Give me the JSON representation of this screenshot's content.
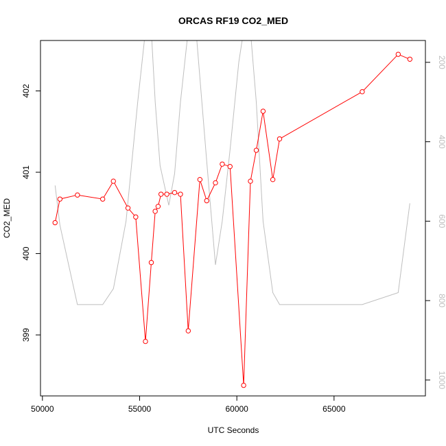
{
  "chart_data": {
    "type": "line",
    "title": "ORCAS RF19 CO2_MED",
    "xlabel": "UTC Seconds",
    "ylabel": "CO2_MED",
    "y2label": "",
    "xlim": [
      49900,
      69700
    ],
    "ylim": [
      398.25,
      402.62
    ],
    "y2lim": [
      1040,
      145
    ],
    "y2_reversed": true,
    "x_ticks": [
      50000,
      55000,
      60000,
      65000
    ],
    "y_ticks": [
      399,
      400,
      401,
      402
    ],
    "y2_ticks": [
      200,
      400,
      600,
      800,
      1000
    ],
    "grid": false,
    "series": [
      {
        "axis": "left",
        "color": "#ff0000",
        "marker": "open-circle",
        "x": [
          50650,
          50900,
          51800,
          53100,
          53650,
          54400,
          54800,
          55300,
          55600,
          55800,
          55950,
          56100,
          56400,
          56800,
          57100,
          57500,
          58100,
          58450,
          58900,
          59250,
          59650,
          60350,
          60700,
          61000,
          61350,
          61850,
          62200,
          66450,
          68300,
          68900
        ],
        "values": [
          400.38,
          400.67,
          400.72,
          400.67,
          400.89,
          400.56,
          400.45,
          398.92,
          399.89,
          400.52,
          400.58,
          400.73,
          400.73,
          400.75,
          400.73,
          399.05,
          400.91,
          400.65,
          400.87,
          401.1,
          401.07,
          398.38,
          400.89,
          401.27,
          401.75,
          400.91,
          401.41,
          401.99,
          402.45,
          402.39
        ]
      },
      {
        "axis": "right",
        "color": "#bebebe",
        "marker": "none",
        "x": [
          50650,
          50900,
          51800,
          52500,
          53100,
          53650,
          54300,
          54900,
          55300,
          55600,
          55800,
          56050,
          56500,
          56800,
          57100,
          57500,
          57900,
          58450,
          58900,
          59250,
          59650,
          60100,
          60350,
          60700,
          61000,
          61350,
          61850,
          62200,
          66450,
          68300,
          68900
        ],
        "values": [
          510,
          610,
          810,
          810,
          810,
          770,
          600,
          300,
          120,
          120,
          300,
          460,
          560,
          480,
          300,
          120,
          120,
          450,
          710,
          600,
          420,
          200,
          120,
          120,
          300,
          600,
          780,
          810,
          810,
          780,
          555
        ]
      }
    ]
  }
}
